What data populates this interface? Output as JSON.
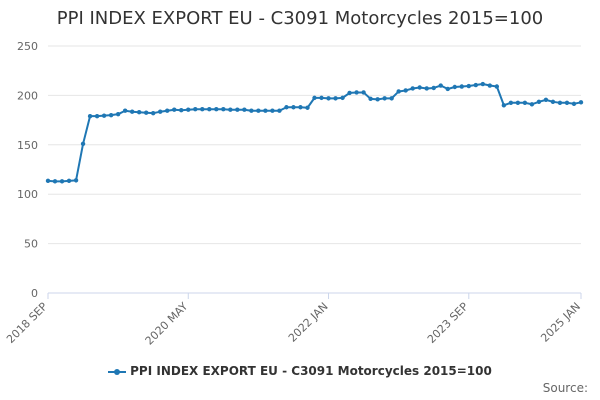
{
  "colors": {
    "series": "#1f77b4",
    "grid": "#e6e6e6",
    "axis": "#ccd6eb",
    "text": "#666666"
  },
  "source_label": "Source:",
  "chart_data": {
    "type": "line",
    "title": "PPI INDEX EXPORT EU - C3091 Motorcycles 2015=100",
    "xlabel": "",
    "ylabel": "",
    "ylim": [
      0,
      250
    ],
    "yticks": [
      0,
      50,
      100,
      150,
      200,
      250
    ],
    "xticks": [
      {
        "label": "2018 SEP",
        "index": 0
      },
      {
        "label": "2020 MAY",
        "index": 20
      },
      {
        "label": "2022 JAN",
        "index": 40
      },
      {
        "label": "2023 SEP",
        "index": 60
      },
      {
        "label": "2025 JAN",
        "index": 76
      }
    ],
    "legend_position": "bottom-center",
    "series": [
      {
        "name": "PPI INDEX EXPORT EU - C3091 Motorcycles 2015=100",
        "values": [
          113.5,
          113.0,
          113.0,
          113.5,
          114.0,
          151.0,
          179.0,
          179.0,
          179.5,
          180.0,
          181.0,
          184.5,
          183.5,
          183.0,
          182.5,
          182.0,
          183.5,
          184.5,
          185.5,
          185.0,
          185.5,
          186.0,
          186.0,
          186.0,
          186.0,
          186.0,
          185.5,
          185.5,
          185.5,
          184.5,
          184.5,
          184.5,
          184.5,
          184.5,
          188.0,
          188.0,
          188.0,
          187.5,
          197.5,
          197.5,
          197.0,
          197.0,
          197.5,
          202.5,
          203.0,
          203.0,
          196.5,
          196.0,
          197.0,
          197.0,
          204.0,
          205.0,
          207.0,
          208.0,
          207.0,
          207.5,
          210.0,
          206.5,
          208.5,
          209.0,
          209.5,
          210.5,
          211.5,
          210.0,
          209.0,
          190.0,
          192.5,
          192.5,
          192.5,
          191.0,
          193.5,
          195.5,
          193.5,
          192.5,
          192.5,
          191.5,
          193.0
        ]
      }
    ]
  }
}
